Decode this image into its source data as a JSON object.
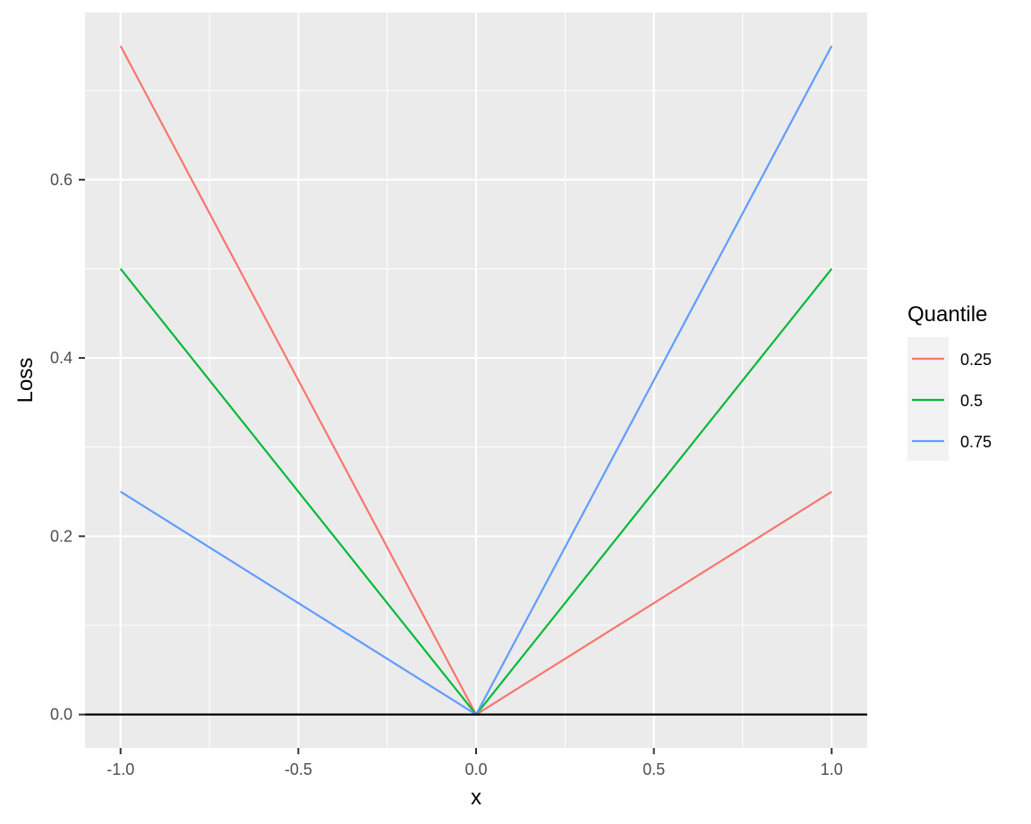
{
  "chart_data": {
    "type": "line",
    "title": "",
    "xlabel": "x",
    "ylabel": "Loss",
    "xlim": [
      -1.1,
      1.1
    ],
    "ylim": [
      -0.0375,
      0.7875
    ],
    "x_ticks": [
      -1.0,
      -0.5,
      0.0,
      0.5,
      1.0
    ],
    "x_tick_labels": [
      "-1.0",
      "-0.5",
      "0.0",
      "0.5",
      "1.0"
    ],
    "y_ticks": [
      0.0,
      0.2,
      0.4,
      0.6
    ],
    "y_tick_labels": [
      "0.0",
      "0.2",
      "0.4",
      "0.6"
    ],
    "x_minor": [
      -0.75,
      -0.25,
      0.25,
      0.75
    ],
    "y_minor": [
      0.1,
      0.3,
      0.5,
      0.7
    ],
    "grid": true,
    "reference_line": {
      "y": 0
    },
    "legend": {
      "title": "Quantile",
      "position": "right"
    },
    "series": [
      {
        "name": "0.25",
        "color": "#F8766D",
        "x": [
          -1,
          0,
          1
        ],
        "y": [
          0.75,
          0,
          0.25
        ]
      },
      {
        "name": "0.5",
        "color": "#00BA38",
        "x": [
          -1,
          0,
          1
        ],
        "y": [
          0.5,
          0,
          0.5
        ]
      },
      {
        "name": "0.75",
        "color": "#619CFF",
        "x": [
          -1,
          0,
          1
        ],
        "y": [
          0.25,
          0,
          0.75
        ]
      }
    ]
  }
}
